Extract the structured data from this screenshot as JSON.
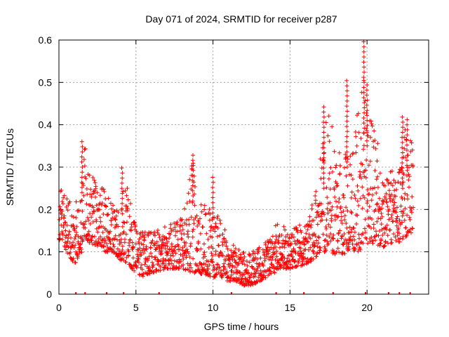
{
  "chart_data": {
    "type": "scatter",
    "title": "Day 071 of 2024, SRMTID for receiver p287",
    "xlabel": "GPS time / hours",
    "ylabel": "SRMTID / TECUs",
    "xlim": [
      0,
      24
    ],
    "ylim": [
      0,
      0.6
    ],
    "xticks": [
      0,
      5,
      10,
      15,
      20
    ],
    "xtick_labels": [
      "0",
      "5",
      "10",
      "15",
      "20"
    ],
    "yticks": [
      0,
      0.1,
      0.2,
      0.3,
      0.4,
      0.5,
      0.6
    ],
    "ytick_labels": [
      "0",
      "0.1",
      "0.2",
      "0.3",
      "0.4",
      "0.5",
      "0.6"
    ],
    "grid": true,
    "marker": "plus",
    "series": [
      {
        "name": "SRMTID",
        "color": "#ff0000",
        "envelope": {
          "x": [
            0,
            0.5,
            1,
            1.5,
            1.6,
            2,
            3,
            3.5,
            4,
            4.2,
            5,
            5.5,
            6,
            7,
            8,
            8.7,
            9,
            10,
            10.5,
            11,
            11.5,
            12,
            12.5,
            13,
            13.5,
            14,
            14.3,
            15,
            16,
            16.5,
            17,
            17.5,
            18,
            19,
            19.5,
            19.8,
            20,
            20.5,
            21,
            21.5,
            22,
            22.5,
            23
          ],
          "low": [
            0.13,
            0.1,
            0.07,
            0.1,
            0.14,
            0.12,
            0.1,
            0.1,
            0.08,
            0.08,
            0.05,
            0.04,
            0.05,
            0.06,
            0.06,
            0.05,
            0.05,
            0.04,
            0.04,
            0.03,
            0.03,
            0.02,
            0.02,
            0.03,
            0.04,
            0.05,
            0.06,
            0.06,
            0.07,
            0.08,
            0.1,
            0.1,
            0.09,
            0.1,
            0.1,
            0.12,
            0.12,
            0.12,
            0.11,
            0.12,
            0.12,
            0.13,
            0.15
          ],
          "high": [
            0.25,
            0.24,
            0.2,
            0.3,
            0.37,
            0.3,
            0.25,
            0.22,
            0.2,
            0.3,
            0.16,
            0.15,
            0.15,
            0.16,
            0.18,
            0.32,
            0.22,
            0.2,
            0.18,
            0.13,
            0.11,
            0.1,
            0.1,
            0.11,
            0.13,
            0.16,
            0.17,
            0.15,
            0.18,
            0.22,
            0.35,
            0.44,
            0.35,
            0.33,
            0.5,
            0.6,
            0.45,
            0.38,
            0.33,
            0.3,
            0.27,
            0.43,
            0.35
          ]
        },
        "spikes": [
          {
            "x": 1.5,
            "from": 0.24,
            "to": 0.37
          },
          {
            "x": 4.1,
            "from": 0.19,
            "to": 0.31
          },
          {
            "x": 8.7,
            "from": 0.22,
            "to": 0.33
          },
          {
            "x": 10.0,
            "from": 0.18,
            "to": 0.28
          },
          {
            "x": 17.2,
            "from": 0.25,
            "to": 0.45
          },
          {
            "x": 18.7,
            "from": 0.3,
            "to": 0.51
          },
          {
            "x": 19.8,
            "from": 0.38,
            "to": 0.6
          },
          {
            "x": 20.0,
            "from": 0.35,
            "to": 0.5
          },
          {
            "x": 22.3,
            "from": 0.25,
            "to": 0.43
          },
          {
            "x": 22.6,
            "from": 0.28,
            "to": 0.42
          }
        ],
        "points_per_hour": 80
      }
    ],
    "baseline_marks": [
      1.1,
      1.7,
      3.1,
      4.2,
      6.5,
      11.2,
      14.1,
      15.9,
      17.8,
      19.9,
      21.4,
      22.1,
      22.8
    ]
  }
}
